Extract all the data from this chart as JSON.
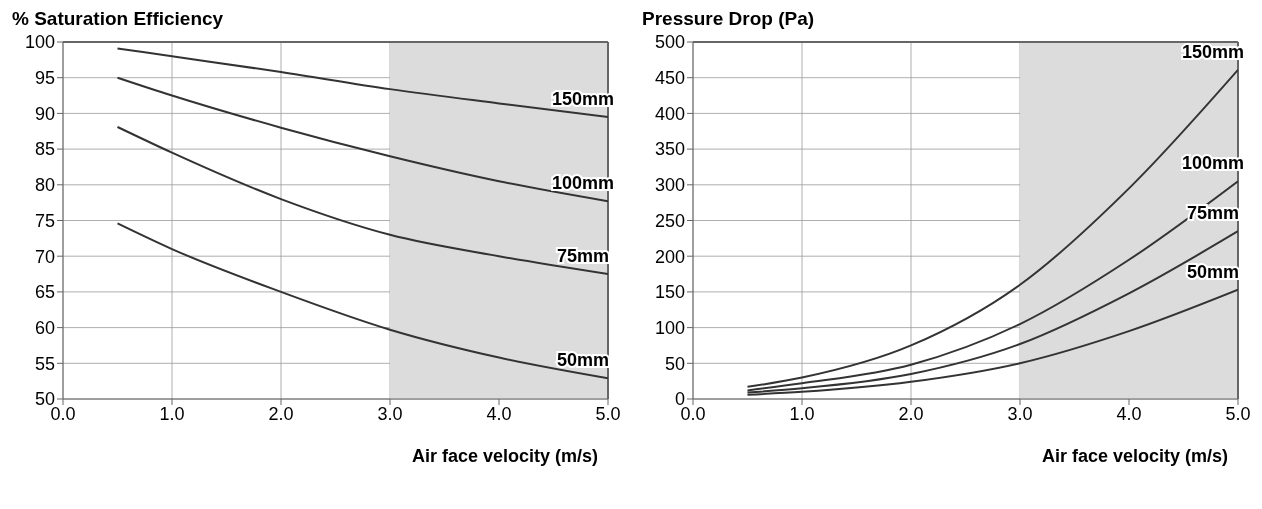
{
  "chart_data": [
    {
      "type": "line",
      "title": "% Saturation Efficiency",
      "xlabel": "Air face velocity (m/s)",
      "x": [
        0.5,
        1.0,
        2.0,
        3.0,
        4.0,
        5.0
      ],
      "series": [
        {
          "name": "150mm",
          "color": "#333333",
          "values": [
            99.1,
            98,
            95.8,
            93.4,
            91.4,
            89.5
          ]
        },
        {
          "name": "100mm",
          "color": "#333333",
          "values": [
            95,
            92.5,
            88,
            84,
            80.5,
            77.7
          ]
        },
        {
          "name": "75mm",
          "color": "#333333",
          "values": [
            88.1,
            84.5,
            78,
            73,
            70,
            67.5
          ]
        },
        {
          "name": "50mm",
          "color": "#333333",
          "values": [
            74.6,
            71,
            65,
            59.7,
            55.8,
            52.9
          ]
        }
      ],
      "xlim": [
        0,
        5
      ],
      "xticks": [
        {
          "value": 0,
          "label": "0.0"
        },
        {
          "value": 1,
          "label": "1.0"
        },
        {
          "value": 2,
          "label": "2.0"
        },
        {
          "value": 3,
          "label": "3.0"
        },
        {
          "value": 4,
          "label": "4.0"
        },
        {
          "value": 5,
          "label": "5.0"
        }
      ],
      "ylim": [
        50,
        100
      ],
      "yticks": [
        50,
        55,
        60,
        65,
        70,
        75,
        80,
        85,
        90,
        95,
        100
      ],
      "bands": [
        {
          "axis": "x",
          "from": 3,
          "to": 5,
          "color": "#dcdcdc"
        }
      ],
      "grid": true,
      "legend": false,
      "marker": "none",
      "line_style": "solid"
    },
    {
      "type": "line",
      "title": "Pressure Drop (Pa)",
      "xlabel": "Air face velocity (m/s)",
      "x": [
        0.5,
        1.0,
        2.0,
        3.0,
        4.0,
        5.0
      ],
      "series": [
        {
          "name": "150mm",
          "color": "#333333",
          "values": [
            17,
            30,
            75,
            160,
            295,
            461
          ]
        },
        {
          "name": "100mm",
          "color": "#333333",
          "values": [
            12,
            22,
            48,
            105,
            195,
            305
          ]
        },
        {
          "name": "75mm",
          "color": "#333333",
          "values": [
            9,
            15,
            35,
            77,
            148,
            235
          ]
        },
        {
          "name": "50mm",
          "color": "#333333",
          "values": [
            6,
            10,
            24,
            50,
            95,
            153
          ]
        }
      ],
      "xlim": [
        0,
        5
      ],
      "xticks": [
        {
          "value": 0,
          "label": "0.0"
        },
        {
          "value": 1,
          "label": "1.0"
        },
        {
          "value": 2,
          "label": "2.0"
        },
        {
          "value": 3,
          "label": "3.0"
        },
        {
          "value": 4,
          "label": "4.0"
        },
        {
          "value": 5,
          "label": "5.0"
        }
      ],
      "ylim": [
        0,
        500
      ],
      "yticks": [
        0,
        50,
        100,
        150,
        200,
        250,
        300,
        350,
        400,
        450,
        500
      ],
      "bands": [
        {
          "axis": "x",
          "from": 3,
          "to": 5,
          "color": "#dcdcdc"
        }
      ],
      "grid": true,
      "legend": false,
      "marker": "none",
      "line_style": "solid"
    }
  ]
}
